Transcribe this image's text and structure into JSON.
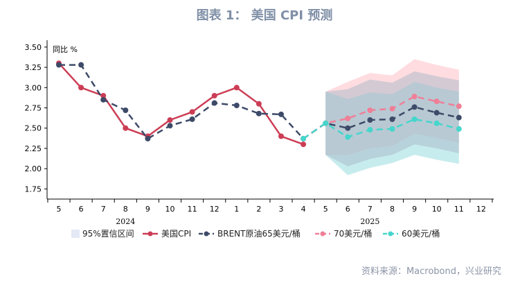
{
  "title": "图表 1：  美国 CPI 预测",
  "source": "资料来源：Macrobond，兴业研究",
  "chart_data": {
    "type": "line",
    "y_unit": "同比 %",
    "ylim": [
      1.625,
      3.55
    ],
    "y_ticks": [
      1.75,
      2.0,
      2.25,
      2.5,
      2.75,
      3.0,
      3.25,
      3.5
    ],
    "y_tick_labels": [
      "1.75",
      "2.00",
      "2.25",
      "2.50",
      "2.75",
      "3.00",
      "3.25",
      "3.50"
    ],
    "x_labels": [
      "5",
      "6",
      "7",
      "8",
      "9",
      "10",
      "11",
      "12",
      "1",
      "2",
      "3",
      "4",
      "5",
      "6",
      "7",
      "8",
      "9",
      "10",
      "11",
      "12"
    ],
    "years": [
      {
        "label": "2024",
        "center_index": 3.0
      },
      {
        "label": "2025",
        "center_index": 14.0
      }
    ],
    "legend": [
      "95%置信区间",
      "美国CPI",
      "BRENT原油65美元/桶",
      "70美元/桶",
      "60美元/桶"
    ],
    "band_color": "#c9d4ee",
    "series": [
      {
        "name": "美国CPI",
        "color": "#cc3d55",
        "dash": false,
        "start_index": 0,
        "values": [
          3.3,
          3.0,
          2.9,
          2.5,
          2.4,
          2.6,
          2.7,
          2.9,
          3.0,
          2.8,
          2.4,
          2.3
        ]
      },
      {
        "name": "BRENT原油65美元/桶",
        "color": "#3d4a68",
        "dash": true,
        "start_index": 0,
        "values": [
          3.28,
          3.28,
          2.85,
          2.72,
          2.37,
          2.53,
          2.61,
          2.81,
          2.78,
          2.68,
          2.67,
          2.37,
          2.56,
          2.5,
          2.6,
          2.61,
          2.76,
          2.69,
          2.63
        ]
      },
      {
        "name": "70美元/桶",
        "color": "#ef7f97",
        "dash": true,
        "start_index": 11,
        "values": [
          2.37,
          2.56,
          2.62,
          2.72,
          2.74,
          2.89,
          2.83,
          2.77
        ]
      },
      {
        "name": "60美元/桶",
        "color": "#45d6cc",
        "dash": true,
        "start_index": 11,
        "values": [
          2.37,
          2.56,
          2.39,
          2.48,
          2.49,
          2.61,
          2.56,
          2.49
        ]
      }
    ],
    "bands": [
      {
        "color": "#ffb9c2",
        "start_index": 12,
        "upper": [
          2.95,
          3.07,
          3.18,
          3.15,
          3.35,
          3.28,
          3.22
        ],
        "lower": [
          2.17,
          2.17,
          2.25,
          2.28,
          2.43,
          2.38,
          2.32
        ]
      },
      {
        "color": "#8fd9de",
        "start_index": 12,
        "upper": [
          2.95,
          2.86,
          2.94,
          2.92,
          3.07,
          3.0,
          2.95
        ],
        "lower": [
          2.17,
          1.92,
          2.01,
          2.07,
          2.17,
          2.11,
          2.06
        ]
      },
      {
        "color": "#aab8c8",
        "start_index": 12,
        "upper": [
          2.95,
          2.98,
          3.1,
          3.06,
          3.2,
          3.14,
          3.09
        ],
        "lower": [
          2.17,
          2.03,
          2.12,
          2.17,
          2.3,
          2.25,
          2.19
        ]
      }
    ]
  }
}
